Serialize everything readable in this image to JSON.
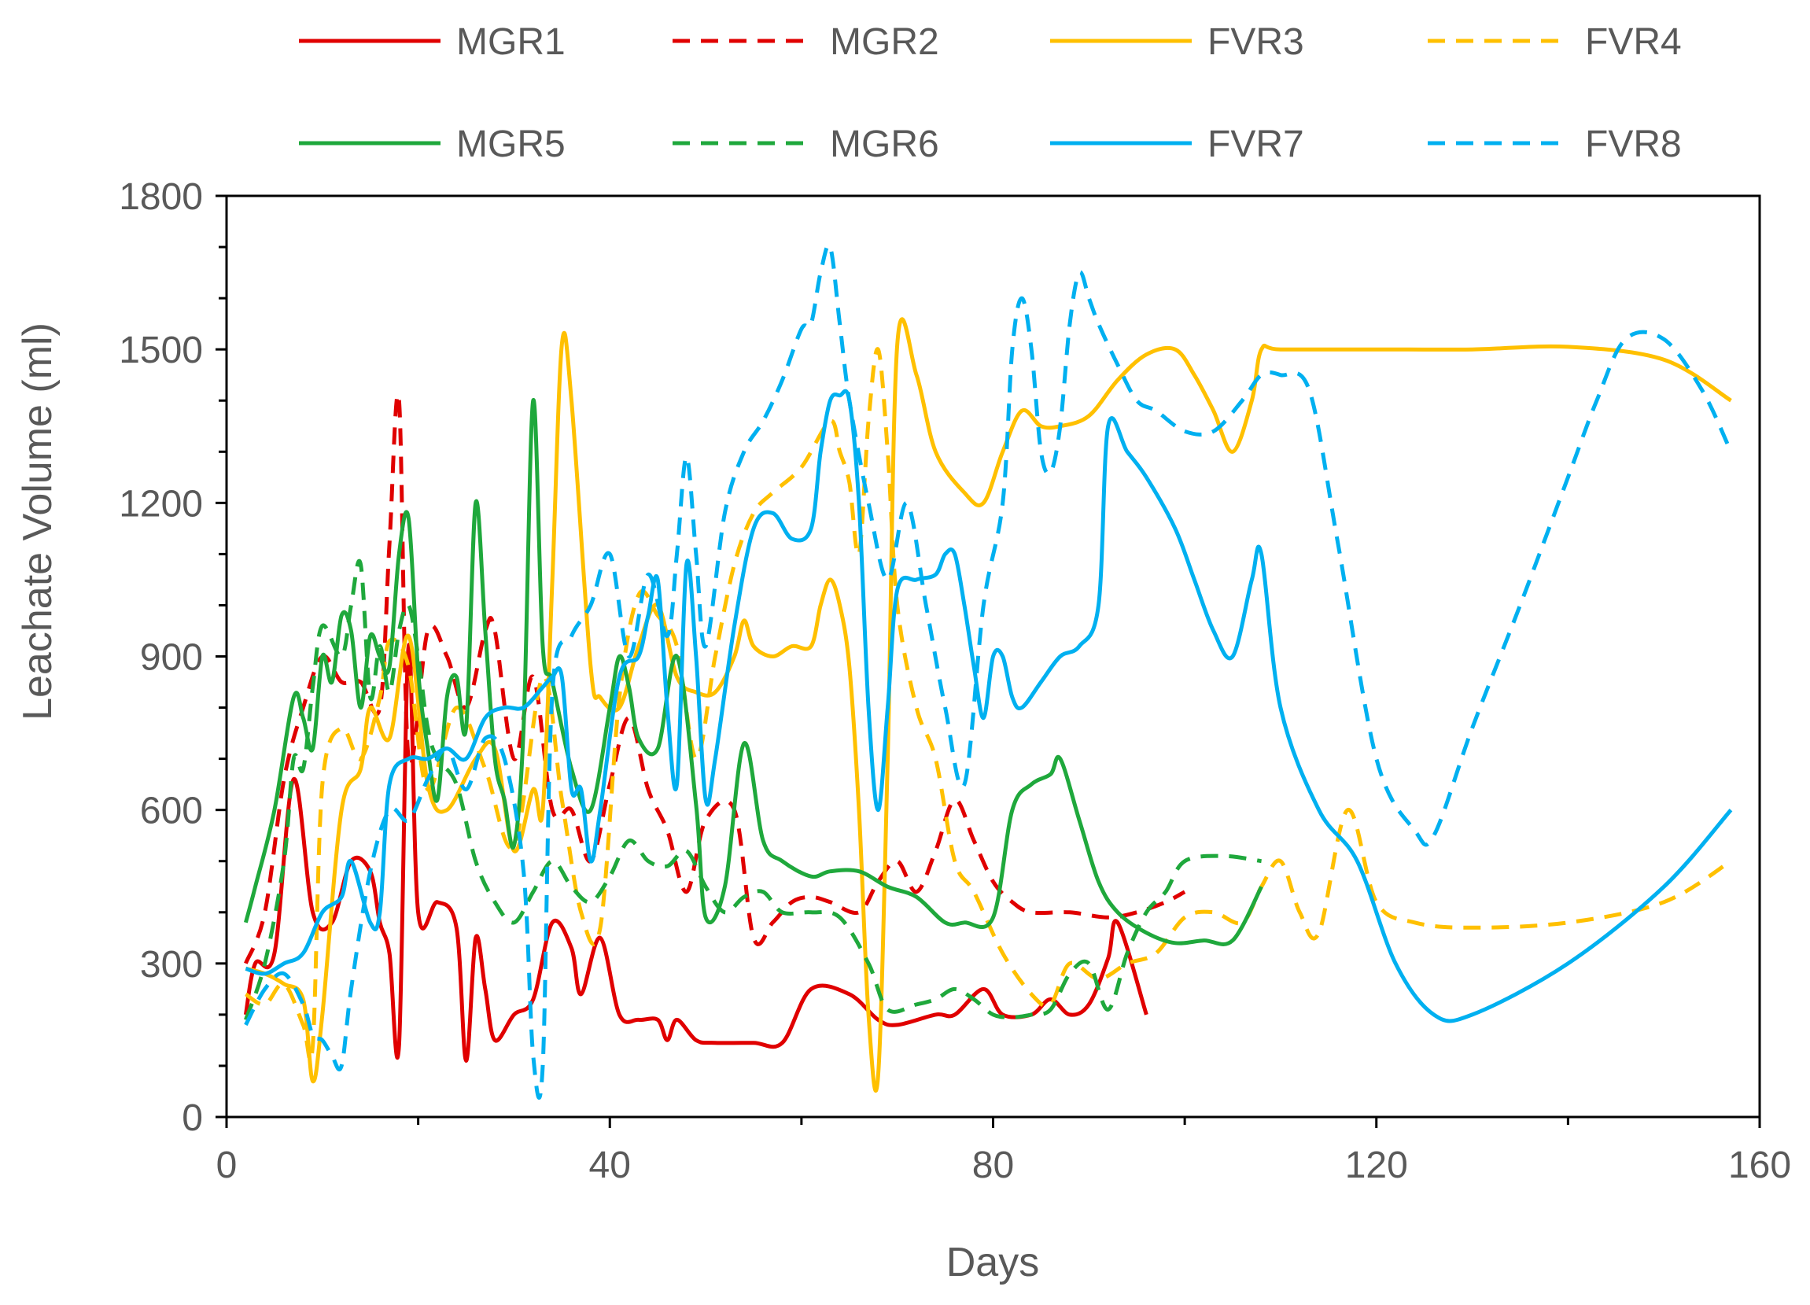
{
  "chart_data": {
    "type": "line",
    "title": "",
    "xlabel": "Days",
    "ylabel": "Leachate Volume (ml)",
    "xlim": [
      0,
      160
    ],
    "ylim": [
      0,
      1800
    ],
    "xticks": [
      0,
      40,
      80,
      120,
      160
    ],
    "yticks": [
      0,
      300,
      600,
      900,
      1200,
      1500,
      1800
    ],
    "grid": false,
    "legend_position": "top",
    "series": [
      {
        "name": "MGR1",
        "color": "#E00000",
        "dashed": false,
        "x": [
          2,
          3,
          5,
          7,
          9,
          11,
          13,
          15,
          16,
          17,
          18,
          19,
          20,
          22,
          24,
          25,
          26,
          27,
          28,
          30,
          32,
          34,
          36,
          37,
          39,
          41,
          43,
          45,
          46,
          47,
          49,
          51,
          55,
          58,
          61,
          65,
          68,
          70,
          74,
          76,
          79,
          81,
          84,
          86,
          88,
          90,
          92,
          93,
          96
        ],
        "y": [
          200,
          300,
          320,
          660,
          400,
          380,
          500,
          480,
          380,
          320,
          140,
          920,
          400,
          420,
          370,
          110,
          350,
          250,
          150,
          200,
          230,
          380,
          330,
          240,
          350,
          200,
          190,
          190,
          150,
          190,
          150,
          145,
          145,
          145,
          250,
          240,
          190,
          180,
          200,
          200,
          250,
          200,
          200,
          230,
          200,
          220,
          310,
          380,
          200
        ]
      },
      {
        "name": "MGR2",
        "color": "#E00000",
        "dashed": true,
        "x": [
          2,
          4,
          6,
          8,
          10,
          12,
          14,
          16,
          17,
          18,
          19,
          21,
          23,
          25,
          27,
          28,
          30,
          32,
          34,
          36,
          38,
          40,
          42,
          44,
          46,
          48,
          50,
          53,
          55,
          57,
          59,
          61,
          63,
          66,
          68,
          70,
          72,
          74,
          76,
          78,
          80,
          82,
          84,
          88,
          92,
          95,
          98,
          100
        ],
        "y": [
          300,
          400,
          660,
          800,
          900,
          850,
          850,
          800,
          1120,
          1400,
          700,
          950,
          900,
          800,
          950,
          950,
          700,
          860,
          600,
          600,
          500,
          650,
          780,
          640,
          560,
          440,
          580,
          600,
          350,
          380,
          420,
          430,
          420,
          400,
          460,
          500,
          440,
          520,
          620,
          540,
          460,
          420,
          400,
          400,
          390,
          400,
          420,
          440
        ]
      },
      {
        "name": "FVR3",
        "color": "#FFC000",
        "dashed": false,
        "x": [
          2,
          4,
          6,
          8,
          9,
          10,
          12,
          14,
          15,
          17,
          19,
          21,
          23,
          26,
          28,
          30,
          32,
          33,
          34,
          35,
          36,
          38,
          39,
          41,
          43,
          45,
          47,
          49,
          51,
          53,
          54,
          55,
          57,
          59,
          61,
          62,
          63,
          64,
          65,
          66,
          67,
          68,
          69,
          70,
          72,
          74,
          77,
          79,
          81,
          83,
          85,
          87,
          90,
          93,
          96,
          99,
          101,
          103,
          105,
          107,
          108,
          110,
          120,
          130,
          140,
          150,
          157
        ],
        "y": [
          290,
          280,
          260,
          230,
          70,
          200,
          600,
          680,
          800,
          740,
          940,
          650,
          600,
          700,
          720,
          520,
          640,
          600,
          1050,
          1510,
          1400,
          880,
          820,
          800,
          920,
          1000,
          860,
          830,
          830,
          900,
          970,
          920,
          900,
          920,
          920,
          1000,
          1050,
          1000,
          880,
          600,
          200,
          80,
          700,
          1510,
          1450,
          1300,
          1220,
          1200,
          1300,
          1380,
          1350,
          1350,
          1370,
          1440,
          1490,
          1500,
          1450,
          1380,
          1300,
          1400,
          1500,
          1500,
          1500,
          1500,
          1505,
          1480,
          1400
        ]
      },
      {
        "name": "FVR4",
        "color": "#FFC000",
        "dashed": true,
        "x": [
          2,
          4,
          6,
          8,
          9,
          10,
          12,
          14,
          16,
          17,
          19,
          21,
          24,
          27,
          30,
          33,
          35,
          37,
          39,
          41,
          43,
          45,
          47,
          49,
          51,
          53,
          55,
          57,
          60,
          63,
          64,
          65,
          66,
          67,
          68,
          69,
          70,
          72,
          74,
          76,
          78,
          81,
          84,
          86,
          88,
          91,
          94,
          97,
          100,
          103,
          106,
          108,
          110,
          112,
          114,
          117,
          120,
          124,
          130,
          140,
          150,
          157
        ],
        "y": [
          240,
          220,
          260,
          180,
          140,
          650,
          760,
          700,
          820,
          930,
          880,
          640,
          800,
          680,
          530,
          860,
          620,
          400,
          370,
          820,
          1020,
          980,
          920,
          700,
          900,
          1080,
          1180,
          1220,
          1270,
          1360,
          1300,
          1240,
          1100,
          1360,
          1500,
          1300,
          1000,
          800,
          700,
          500,
          440,
          320,
          240,
          220,
          300,
          270,
          300,
          320,
          390,
          400,
          380,
          450,
          500,
          400,
          360,
          600,
          420,
          380,
          370,
          380,
          420,
          500
        ]
      },
      {
        "name": "MGR5",
        "color": "#1FA83C",
        "dashed": false,
        "x": [
          2,
          3,
          5,
          7,
          8,
          9,
          10,
          11,
          12,
          13,
          14,
          15,
          16,
          17,
          18,
          19,
          20,
          21,
          22,
          23,
          24,
          25,
          26,
          27,
          28,
          29,
          30,
          31,
          32,
          33,
          34,
          36,
          38,
          40,
          41,
          42,
          43,
          45,
          47,
          49,
          50,
          52,
          54,
          56,
          58,
          61,
          63,
          66,
          69,
          72,
          75,
          77,
          80,
          82,
          84,
          86,
          87,
          89,
          91,
          93,
          96,
          99,
          102,
          105,
          108
        ],
        "y": [
          380,
          450,
          600,
          820,
          780,
          720,
          900,
          850,
          980,
          950,
          800,
          940,
          900,
          880,
          1100,
          1170,
          870,
          720,
          620,
          820,
          860,
          760,
          1200,
          950,
          700,
          620,
          530,
          760,
          1400,
          920,
          850,
          680,
          600,
          800,
          900,
          840,
          740,
          720,
          900,
          610,
          390,
          450,
          730,
          540,
          500,
          470,
          480,
          480,
          450,
          430,
          380,
          380,
          390,
          600,
          650,
          670,
          700,
          580,
          460,
          400,
          360,
          340,
          345,
          345,
          450
        ]
      },
      {
        "name": "MGR6",
        "color": "#1FA83C",
        "dashed": true,
        "x": [
          2,
          4,
          6,
          7,
          8,
          9,
          10,
          12,
          13,
          14,
          15,
          16,
          17,
          18,
          19,
          20,
          21,
          22,
          24,
          26,
          28,
          30,
          32,
          34,
          36,
          38,
          40,
          42,
          44,
          46,
          48,
          50,
          52,
          54,
          56,
          58,
          61,
          64,
          67,
          69,
          72,
          74,
          76,
          78,
          80,
          82,
          84,
          86,
          88,
          90,
          92,
          94,
          96,
          98,
          100,
          104,
          108
        ],
        "y": [
          190,
          300,
          500,
          700,
          680,
          840,
          960,
          900,
          1000,
          1080,
          820,
          920,
          830,
          950,
          1000,
          900,
          760,
          700,
          650,
          500,
          420,
          380,
          440,
          500,
          450,
          420,
          470,
          540,
          500,
          490,
          520,
          450,
          400,
          430,
          440,
          400,
          400,
          390,
          300,
          210,
          220,
          230,
          250,
          230,
          200,
          195,
          200,
          210,
          280,
          300,
          210,
          320,
          400,
          440,
          500,
          510,
          500
        ]
      },
      {
        "name": "FVR7",
        "color": "#00B0F0",
        "dashed": false,
        "x": [
          2,
          4,
          6,
          8,
          10,
          12,
          13,
          15,
          16,
          17,
          19,
          21,
          23,
          25,
          27,
          29,
          31,
          33,
          34,
          35,
          36,
          37,
          38,
          39,
          41,
          43,
          44,
          45,
          46,
          47,
          48,
          49,
          50,
          51,
          53,
          55,
          57,
          59,
          61,
          62,
          63,
          64,
          65,
          66,
          67,
          68,
          69,
          70,
          72,
          74,
          75,
          76,
          77,
          78,
          79,
          80,
          81,
          82,
          83,
          85,
          87,
          89,
          91,
          92,
          94,
          96,
          99,
          101,
          103,
          105,
          107,
          108,
          110,
          114,
          118,
          122,
          126,
          130,
          140,
          150,
          157
        ],
        "y": [
          290,
          280,
          300,
          320,
          400,
          430,
          500,
          380,
          400,
          650,
          700,
          700,
          720,
          700,
          780,
          800,
          800,
          840,
          860,
          860,
          640,
          640,
          500,
          600,
          860,
          900,
          980,
          1050,
          800,
          650,
          1080,
          900,
          620,
          700,
          960,
          1150,
          1180,
          1130,
          1150,
          1300,
          1400,
          1410,
          1400,
          1200,
          800,
          600,
          800,
          1030,
          1050,
          1060,
          1100,
          1100,
          1000,
          880,
          780,
          900,
          900,
          820,
          800,
          850,
          900,
          920,
          1000,
          1350,
          1300,
          1250,
          1150,
          1050,
          950,
          900,
          1050,
          1100,
          800,
          600,
          500,
          300,
          200,
          200,
          300,
          450,
          600
        ]
      },
      {
        "name": "FVR8",
        "color": "#00B0F0",
        "dashed": true,
        "x": [
          2,
          4,
          6,
          8,
          9,
          10,
          11,
          12,
          13,
          15,
          17,
          19,
          21,
          23,
          25,
          27,
          29,
          31,
          32,
          33,
          34,
          36,
          38,
          40,
          42,
          44,
          46,
          47,
          48,
          49,
          50,
          52,
          54,
          56,
          58,
          60,
          61,
          62,
          63,
          64,
          65,
          67,
          69,
          71,
          73,
          75,
          77,
          79,
          81,
          82,
          83,
          84,
          85,
          86,
          87,
          88,
          89,
          90,
          91,
          93,
          95,
          97,
          100,
          103,
          106,
          108,
          110,
          113,
          116,
          120,
          124,
          126,
          130,
          135,
          140,
          143,
          146,
          150,
          154,
          157
        ],
        "y": [
          180,
          250,
          280,
          220,
          160,
          150,
          120,
          100,
          250,
          480,
          600,
          580,
          660,
          720,
          640,
          740,
          700,
          480,
          120,
          100,
          830,
          940,
          1000,
          1100,
          900,
          1060,
          940,
          1100,
          1290,
          1100,
          920,
          1180,
          1300,
          1360,
          1440,
          1540,
          1550,
          1650,
          1700,
          1550,
          1400,
          1200,
          1050,
          1200,
          1000,
          800,
          650,
          1000,
          1200,
          1500,
          1600,
          1500,
          1300,
          1260,
          1350,
          1550,
          1650,
          1600,
          1550,
          1470,
          1400,
          1380,
          1340,
          1340,
          1400,
          1450,
          1450,
          1420,
          1120,
          700,
          560,
          550,
          760,
          1000,
          1250,
          1400,
          1520,
          1520,
          1420,
          1300
        ]
      }
    ]
  }
}
